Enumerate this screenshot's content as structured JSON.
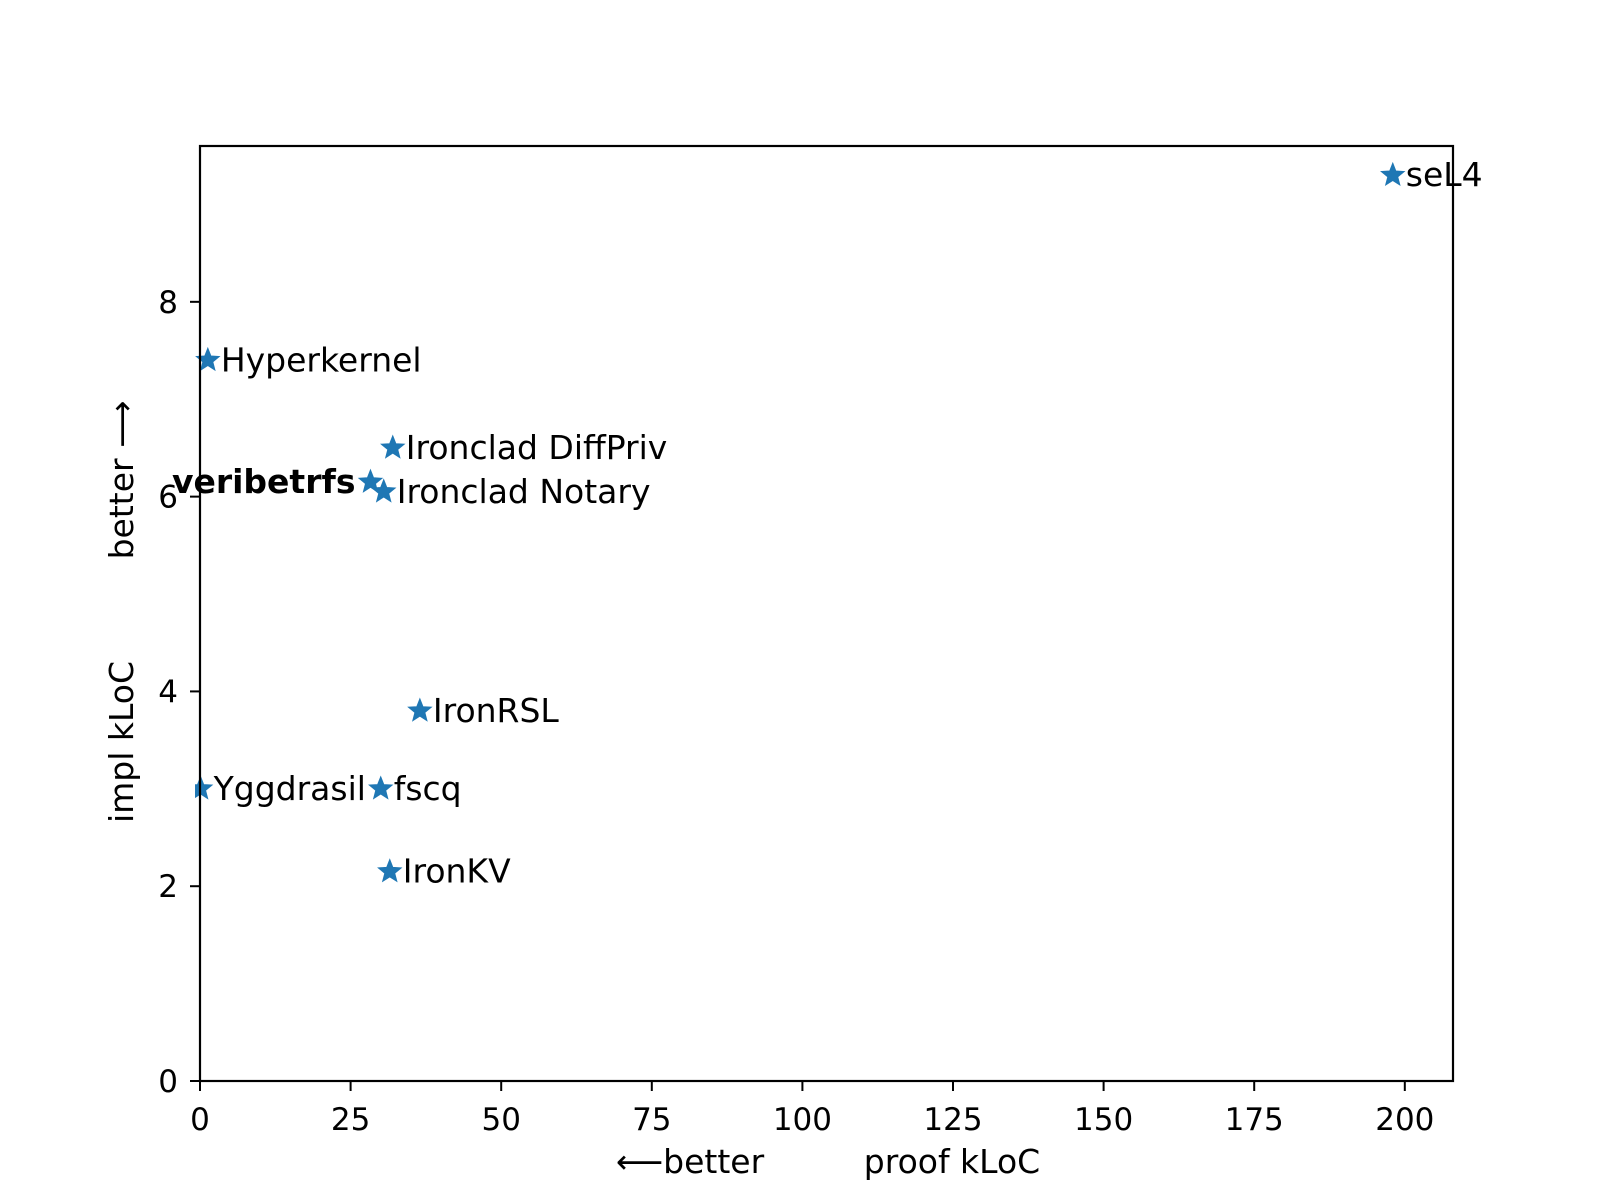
{
  "chart_data": {
    "type": "scatter",
    "title": "",
    "xlabel": "proof kLoC",
    "xlabel_hint": "⟵better",
    "ylabel": "impl kLoC",
    "ylabel_hint": "better ⟶",
    "xlim": [
      0,
      208
    ],
    "ylim": [
      0,
      9.6
    ],
    "xticks": [
      0,
      25,
      50,
      75,
      100,
      125,
      150,
      175,
      200
    ],
    "yticks": [
      0,
      2,
      4,
      6,
      8
    ],
    "marker": "star",
    "grid": false,
    "legend": "none",
    "colors": {
      "marker": "#1f77b4",
      "axes": "#000000",
      "text": "#000000"
    },
    "points": [
      {
        "label": "seL4",
        "x": 198,
        "y": 9.3,
        "bold": false,
        "label_side": "right"
      },
      {
        "label": "Hyperkernel",
        "x": 1.3,
        "y": 7.4,
        "bold": false,
        "label_side": "right"
      },
      {
        "label": "Ironclad DiffPriv",
        "x": 32,
        "y": 6.5,
        "bold": false,
        "label_side": "right"
      },
      {
        "label": "veribetrfs",
        "x": 28.3,
        "y": 6.15,
        "bold": true,
        "label_side": "left"
      },
      {
        "label": "Ironclad Notary",
        "x": 30.5,
        "y": 6.05,
        "bold": false,
        "label_side": "right"
      },
      {
        "label": "IronRSL",
        "x": 36.5,
        "y": 3.8,
        "bold": false,
        "label_side": "right"
      },
      {
        "label": "Yggdrasil",
        "x": 0.1,
        "y": 3.0,
        "bold": false,
        "label_side": "right"
      },
      {
        "label": "fscq",
        "x": 30,
        "y": 3.0,
        "bold": false,
        "label_side": "right"
      },
      {
        "label": "IronKV",
        "x": 31.5,
        "y": 2.15,
        "bold": false,
        "label_side": "right"
      }
    ]
  }
}
